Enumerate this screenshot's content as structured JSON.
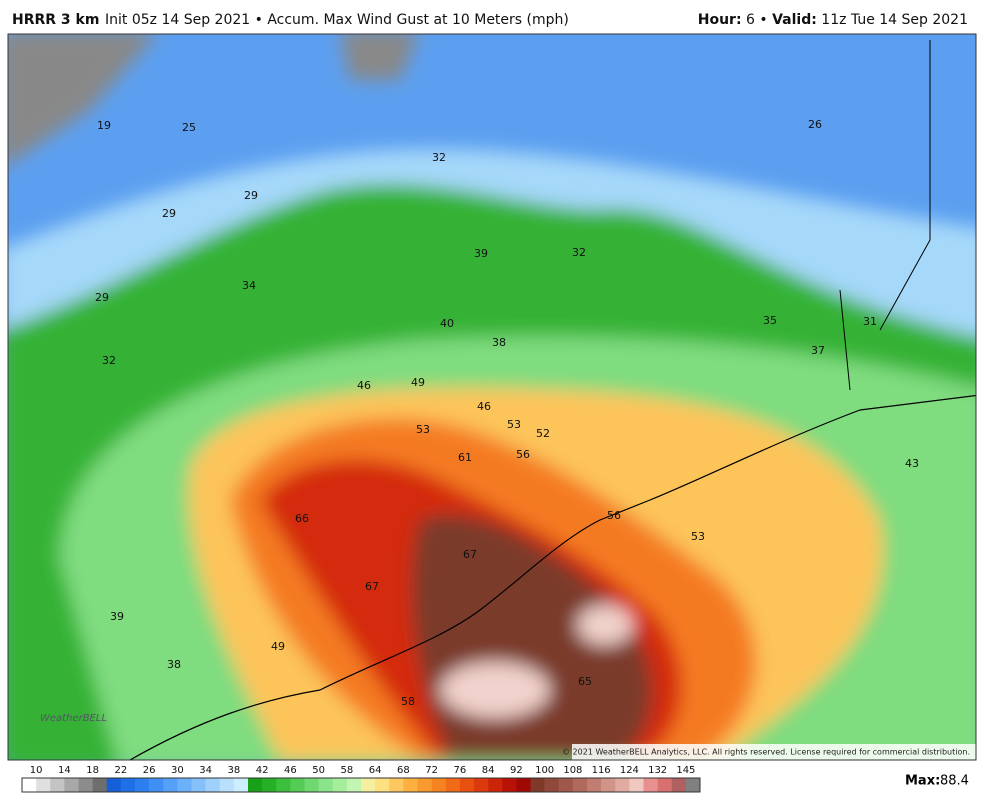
{
  "header": {
    "model": "HRRR 3 km",
    "description": "Init 05z 14 Sep 2021 • Accum. Max Wind Gust at 10 Meters (mph)",
    "hour_label": "Hour:",
    "hour_value": "6 •",
    "valid_label": "Valid:",
    "valid_value": "11z Tue 14 Sep 2021"
  },
  "map": {
    "labels": [
      19,
      25,
      26,
      32,
      29,
      29,
      39,
      32,
      34,
      29,
      40,
      38,
      35,
      31,
      37,
      32,
      46,
      49,
      46,
      53,
      53,
      52,
      56,
      61,
      43,
      66,
      56,
      53,
      67,
      67,
      39,
      49,
      38,
      65,
      58
    ],
    "copyright": "© 2021 WeatherBELL Analytics, LLC. All rights reserved. License required for commercial distribution.",
    "logo": "WeatherBELL"
  },
  "colorbar": {
    "ticks": [
      10,
      14,
      18,
      22,
      26,
      30,
      34,
      38,
      42,
      46,
      50,
      58,
      64,
      68,
      72,
      76,
      84,
      92,
      100,
      108,
      116,
      124,
      132,
      145
    ],
    "colors": [
      "#ffffff",
      "#e0e0e0",
      "#c4c4c4",
      "#a8a8a8",
      "#8c8c8c",
      "#6e6e6e",
      "#1560d8",
      "#1f6fe6",
      "#2d7ff0",
      "#3f8ff5",
      "#55a0f8",
      "#6cb0fa",
      "#85c0fb",
      "#a0d0fc",
      "#b8e0fd",
      "#cdeefe",
      "#18a018",
      "#26b026",
      "#3cbf3c",
      "#55cc55",
      "#70d870",
      "#8be48b",
      "#a6ee9c",
      "#c2f5b2",
      "#f5f0a0",
      "#fde080",
      "#fdc860",
      "#fcb040",
      "#f89a30",
      "#f58420",
      "#f06a18",
      "#e85010",
      "#dc3a0c",
      "#cc2408",
      "#b81206",
      "#a00804",
      "#803828",
      "#90483a",
      "#a0584a",
      "#b06a5c",
      "#c07e72",
      "#d09488",
      "#e0aca2",
      "#f0c8c0",
      "#e89090",
      "#d87070",
      "#b06060",
      "#808080"
    ]
  },
  "max": {
    "label": "Max:",
    "value": 88.4
  }
}
